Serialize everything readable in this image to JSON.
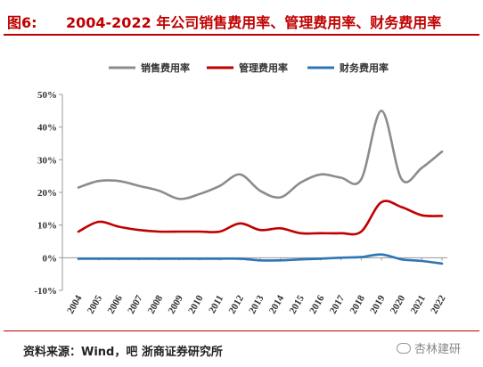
{
  "header": {
    "fig_num": "图6:",
    "title": "2004-2022 年公司销售费用率、管理费用率、财务费用率"
  },
  "footer": {
    "source": "资料来源：Wind，吧 浙商证券研究所",
    "watermark": "杏林建研",
    "watermark_icon": "wechat-icon"
  },
  "chart_data": {
    "type": "line",
    "title": "",
    "xlabel": "",
    "ylabel": "",
    "x": [
      "2004",
      "2005",
      "2006",
      "2007",
      "2008",
      "2009",
      "2010",
      "2011",
      "2012",
      "2013",
      "2014",
      "2015",
      "2016",
      "2017",
      "2018",
      "2019",
      "2020",
      "2021",
      "2022"
    ],
    "ylim": [
      -10,
      50
    ],
    "yticks": [
      -10,
      0,
      10,
      20,
      30,
      40,
      50
    ],
    "ytick_labels": [
      "-10%",
      "0%",
      "10%",
      "20%",
      "30%",
      "40%",
      "50%"
    ],
    "grid": false,
    "legend_position": "top",
    "series": [
      {
        "name": "销售费用率",
        "color": "#8c8c8c",
        "values": [
          21.5,
          23.5,
          23.5,
          22.0,
          20.5,
          18.0,
          19.5,
          22.0,
          25.5,
          20.5,
          18.5,
          23.0,
          25.5,
          24.5,
          24.0,
          45.0,
          24.0,
          27.5,
          32.5
        ]
      },
      {
        "name": "管理费用率",
        "color": "#c00000",
        "values": [
          8.0,
          11.0,
          9.5,
          8.5,
          8.0,
          8.0,
          8.0,
          8.0,
          10.5,
          8.5,
          9.0,
          7.5,
          7.5,
          7.5,
          8.0,
          17.0,
          15.5,
          13.0,
          12.8
        ]
      },
      {
        "name": "财务费用率",
        "color": "#2e75b6",
        "values": [
          -0.3,
          -0.3,
          -0.3,
          -0.3,
          -0.3,
          -0.3,
          -0.3,
          -0.3,
          -0.3,
          -0.8,
          -0.8,
          -0.5,
          -0.3,
          0.0,
          0.2,
          1.0,
          -0.5,
          -1.0,
          -1.8
        ]
      }
    ]
  }
}
